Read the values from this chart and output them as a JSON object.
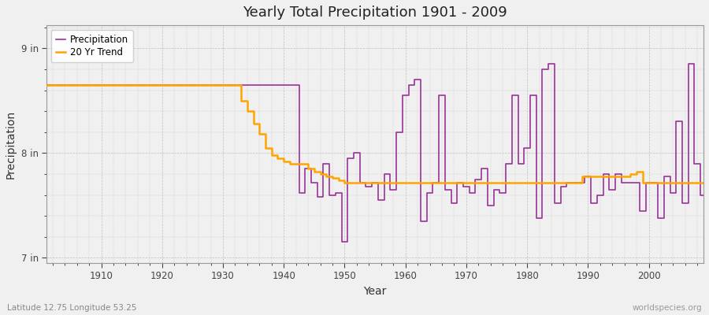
{
  "title": "Yearly Total Precipitation 1901 - 2009",
  "xlabel": "Year",
  "ylabel": "Precipitation",
  "bg_color": "#f0f0f0",
  "plot_bg_color": "#f0f0f0",
  "precip_color": "#993399",
  "trend_color": "#FFA500",
  "lat_lon_label": "Latitude 12.75 Longitude 53.25",
  "watermark": "worldspecies.org",
  "ylim_min": 6.95,
  "ylim_max": 9.22,
  "ytick_vals": [
    7.0,
    8.0,
    9.0
  ],
  "xmin": 1901,
  "xmax": 2009,
  "years": [
    1901,
    1902,
    1903,
    1904,
    1905,
    1906,
    1907,
    1908,
    1909,
    1910,
    1911,
    1912,
    1913,
    1914,
    1915,
    1916,
    1917,
    1918,
    1919,
    1920,
    1921,
    1922,
    1923,
    1924,
    1925,
    1926,
    1927,
    1928,
    1929,
    1930,
    1931,
    1932,
    1933,
    1934,
    1935,
    1936,
    1937,
    1938,
    1939,
    1940,
    1941,
    1942,
    1943,
    1944,
    1945,
    1946,
    1947,
    1948,
    1949,
    1950,
    1951,
    1952,
    1953,
    1954,
    1955,
    1956,
    1957,
    1958,
    1959,
    1960,
    1961,
    1962,
    1963,
    1964,
    1965,
    1966,
    1967,
    1968,
    1969,
    1970,
    1971,
    1972,
    1973,
    1974,
    1975,
    1976,
    1977,
    1978,
    1979,
    1980,
    1981,
    1982,
    1983,
    1984,
    1985,
    1986,
    1987,
    1988,
    1989,
    1990,
    1991,
    1992,
    1993,
    1994,
    1995,
    1996,
    1997,
    1998,
    1999,
    2000,
    2001,
    2002,
    2003,
    2004,
    2005,
    2006,
    2007,
    2008,
    2009
  ],
  "precip_in": [
    8.65,
    8.65,
    8.65,
    8.65,
    8.65,
    8.65,
    8.65,
    8.65,
    8.65,
    8.65,
    8.65,
    8.65,
    8.65,
    8.65,
    8.65,
    8.65,
    8.65,
    8.65,
    8.65,
    8.65,
    8.65,
    8.65,
    8.65,
    8.65,
    8.65,
    8.65,
    8.65,
    8.65,
    8.65,
    8.65,
    8.65,
    8.65,
    8.65,
    8.65,
    8.65,
    8.65,
    8.65,
    8.65,
    8.65,
    8.65,
    8.65,
    8.65,
    7.62,
    7.85,
    7.72,
    7.58,
    7.9,
    7.6,
    7.62,
    7.15,
    7.95,
    8.0,
    7.72,
    7.68,
    7.72,
    7.55,
    7.8,
    7.65,
    8.2,
    8.55,
    8.65,
    8.7,
    7.35,
    7.62,
    7.72,
    8.55,
    7.65,
    7.52,
    7.72,
    7.68,
    7.62,
    7.75,
    7.85,
    7.5,
    7.65,
    7.62,
    7.9,
    8.55,
    7.9,
    8.05,
    8.55,
    7.38,
    8.8,
    8.85,
    7.52,
    7.68,
    7.72,
    7.72,
    7.72,
    7.78,
    7.52,
    7.6,
    7.8,
    7.65,
    7.8,
    7.72,
    7.72,
    7.72,
    7.45,
    7.72,
    7.72,
    7.38,
    7.78,
    7.62,
    8.3,
    7.52,
    8.85,
    7.9,
    7.6
  ],
  "trend_in": [
    8.65,
    8.65,
    8.65,
    8.65,
    8.65,
    8.65,
    8.65,
    8.65,
    8.65,
    8.65,
    8.65,
    8.65,
    8.65,
    8.65,
    8.65,
    8.65,
    8.65,
    8.65,
    8.65,
    8.65,
    8.65,
    8.65,
    8.65,
    8.65,
    8.65,
    8.65,
    8.65,
    8.65,
    8.65,
    8.65,
    8.65,
    8.65,
    8.5,
    8.4,
    8.28,
    8.18,
    8.05,
    7.98,
    7.95,
    7.92,
    7.9,
    7.9,
    7.9,
    7.85,
    7.82,
    7.8,
    7.78,
    7.76,
    7.74,
    7.72,
    7.72,
    7.72,
    7.72,
    7.72,
    7.72,
    7.72,
    7.72,
    7.72,
    7.72,
    7.72,
    7.72,
    7.72,
    7.72,
    7.72,
    7.72,
    7.72,
    7.72,
    7.72,
    7.72,
    7.72,
    7.72,
    7.72,
    7.72,
    7.72,
    7.72,
    7.72,
    7.72,
    7.72,
    7.72,
    7.72,
    7.72,
    7.72,
    7.72,
    7.72,
    7.72,
    7.72,
    7.72,
    7.72,
    7.78,
    7.78,
    7.78,
    7.78,
    7.78,
    7.78,
    7.78,
    7.78,
    7.8,
    7.82,
    7.72,
    7.72,
    7.72,
    7.72,
    7.72,
    7.72,
    7.72,
    7.72,
    7.72,
    7.72,
    7.72
  ]
}
